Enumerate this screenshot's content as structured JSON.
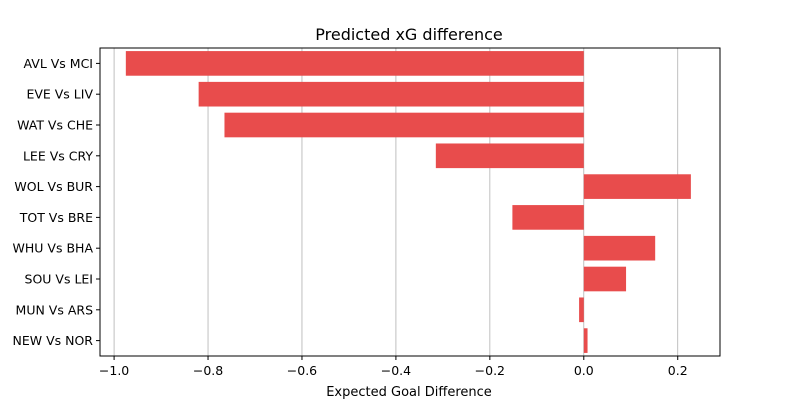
{
  "chart_data": {
    "type": "bar",
    "orientation": "horizontal",
    "title": "Predicted xG difference",
    "xlabel": "Expected Goal Difference",
    "ylabel": "",
    "categories": [
      "AVL Vs MCI",
      "EVE Vs LIV",
      "WAT Vs CHE",
      "LEE Vs CRY",
      "WOL Vs BUR",
      "TOT Vs BRE",
      "WHU Vs BHA",
      "SOU Vs LEI",
      "MUN Vs ARS",
      "NEW Vs NOR"
    ],
    "values": [
      -0.975,
      -0.82,
      -0.765,
      -0.315,
      0.228,
      -0.152,
      0.152,
      0.09,
      -0.01,
      0.008
    ],
    "xlim": [
      -1.03,
      0.29
    ],
    "xticks": [
      -1.0,
      -0.8,
      -0.6,
      -0.4,
      -0.2,
      0.0,
      0.2
    ],
    "xtick_labels": [
      "−1.0",
      "−0.8",
      "−0.6",
      "−0.4",
      "−0.2",
      "0.0",
      "0.2"
    ],
    "grid": "x",
    "bar_color": "#e84c4c",
    "grid_color": "#b0b0b0"
  }
}
